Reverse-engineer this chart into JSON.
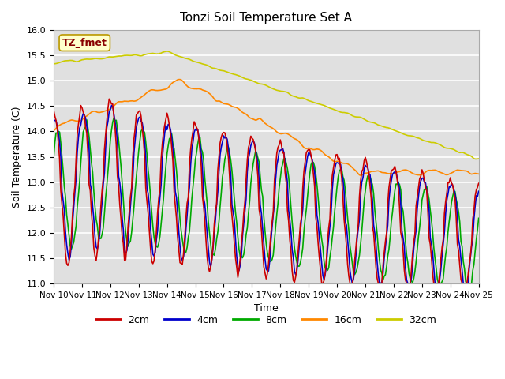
{
  "title": "Tonzi Soil Temperature Set A",
  "xlabel": "Time",
  "ylabel": "Soil Temperature (C)",
  "ylim": [
    11.0,
    16.0
  ],
  "xlim": [
    0,
    360
  ],
  "bg_color": "#e0e0e0",
  "grid_color": "white",
  "label_box_text": "TZ_fmet",
  "label_box_color": "#ffffcc",
  "label_box_edge": "#bb9900",
  "label_box_text_color": "#880000",
  "xtick_labels": [
    "Nov 10",
    "Nov 11",
    "Nov 12",
    "Nov 13",
    "Nov 14",
    "Nov 15",
    "Nov 16",
    "Nov 17",
    "Nov 18",
    "Nov 19",
    "Nov 20",
    "Nov 21",
    "Nov 22",
    "Nov 23",
    "Nov 24",
    "Nov 25"
  ],
  "xtick_positions": [
    0,
    24,
    48,
    72,
    96,
    120,
    144,
    168,
    192,
    216,
    240,
    264,
    288,
    312,
    336,
    360
  ],
  "ytick_labels": [
    "11.0",
    "11.5",
    "12.0",
    "12.5",
    "13.0",
    "13.5",
    "14.0",
    "14.5",
    "15.0",
    "15.5",
    "16.0"
  ],
  "ytick_positions": [
    11.0,
    11.5,
    12.0,
    12.5,
    13.0,
    13.5,
    14.0,
    14.5,
    15.0,
    15.5,
    16.0
  ],
  "color_2cm": "#cc0000",
  "color_4cm": "#0000cc",
  "color_8cm": "#00aa00",
  "color_16cm": "#ff8800",
  "color_32cm": "#cccc00",
  "lw": 1.2,
  "legend_items": [
    {
      "label": "2cm",
      "color": "#cc0000"
    },
    {
      "label": "4cm",
      "color": "#0000cc"
    },
    {
      "label": "8cm",
      "color": "#00aa00"
    },
    {
      "label": "16cm",
      "color": "#ff8800"
    },
    {
      "label": "32cm",
      "color": "#cccc00"
    }
  ]
}
